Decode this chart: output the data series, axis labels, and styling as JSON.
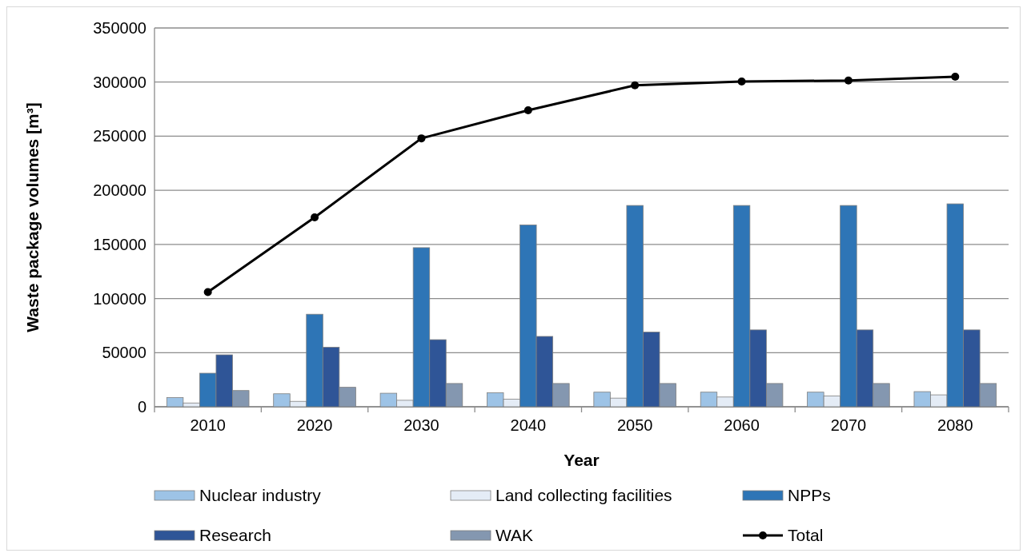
{
  "chart_data": {
    "type": "bar",
    "xlabel": "Year",
    "ylabel": "Waste package volumes [m³]",
    "categories": [
      "2010",
      "2020",
      "2030",
      "2040",
      "2050",
      "2060",
      "2070",
      "2080"
    ],
    "series": [
      {
        "name": "Nuclear industry",
        "color": "#9dc3e6",
        "values": [
          8500,
          12000,
          12500,
          13000,
          13500,
          13500,
          13500,
          14000
        ]
      },
      {
        "name": "Land collecting facilities",
        "color": "#e4ecf6",
        "values": [
          3500,
          5000,
          6000,
          7000,
          8000,
          9000,
          10000,
          11000
        ]
      },
      {
        "name": "NPPs",
        "color": "#2e75b6",
        "values": [
          31000,
          85500,
          147000,
          168000,
          186000,
          186000,
          186000,
          187500
        ]
      },
      {
        "name": "Research",
        "color": "#2f5597",
        "values": [
          48000,
          55000,
          62000,
          65000,
          69000,
          71000,
          71000,
          71000
        ]
      },
      {
        "name": "WAK",
        "color": "#8497b0",
        "values": [
          15000,
          18000,
          21500,
          21500,
          21500,
          21500,
          21500,
          21500
        ]
      },
      {
        "name": "Total",
        "type": "line",
        "color": "#000000",
        "marker": "circle",
        "values": [
          106000,
          175000,
          248000,
          274000,
          297000,
          300500,
          301500,
          305000
        ]
      }
    ],
    "ylim": [
      0,
      350000
    ],
    "yticks": [
      0,
      50000,
      100000,
      150000,
      200000,
      250000,
      300000,
      350000
    ],
    "grid": "y",
    "legend": "bottom"
  }
}
